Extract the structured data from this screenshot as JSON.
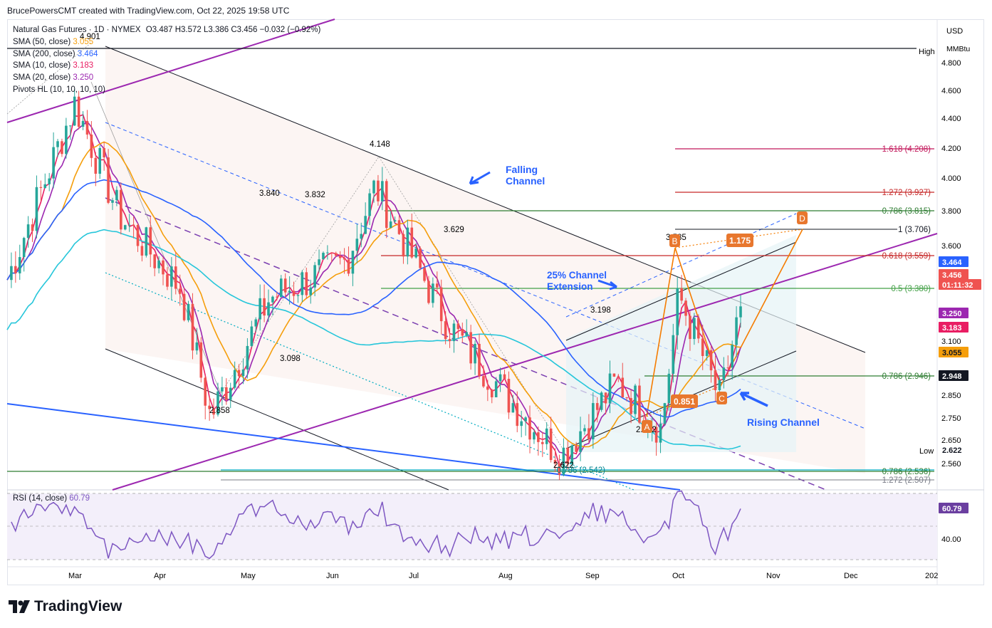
{
  "header": {
    "credit": "BrucePowersCMT created with TradingView.com, Oct 22, 2025 19:58 UTC"
  },
  "legend": {
    "title": "Natural Gas Futures · 1D · NYMEX",
    "ohlc": "O3.487  H3.572  L3.386  C3.456  −0.032 (−0.92%)",
    "studies": [
      {
        "label": "SMA (50, close)",
        "value": "3.055",
        "color": "#f59e0b"
      },
      {
        "label": "SMA (200, close)",
        "value": "3.464",
        "color": "#2962ff"
      },
      {
        "label": "SMA (10, close)",
        "value": "3.183",
        "color": "#e91e63"
      },
      {
        "label": "SMA (20, close)",
        "value": "3.250",
        "color": "#9c27b0"
      },
      {
        "label": "Pivots HL (10, 10, 10, 10)",
        "value": "",
        "color": "#131722"
      }
    ]
  },
  "axis": {
    "currency": "USD",
    "unit": "MMBtu",
    "high_tag": "High",
    "low_tag": "Low",
    "price_ticks": [
      "4.800",
      "4.600",
      "4.400",
      "4.200",
      "4.000",
      "3.800",
      "3.600",
      "3.100",
      "2.850",
      "2.750",
      "2.650",
      "2.560",
      "40.00"
    ],
    "price_badges": [
      {
        "text": "3.464",
        "bg": "#2962ff",
        "fg": "#ffffff"
      },
      {
        "text": "3.456",
        "bg": "#ef5350",
        "fg": "#ffffff"
      },
      {
        "text": "01:11:32",
        "bg": "#ef5350",
        "fg": "#ffffff"
      },
      {
        "text": "3.250",
        "bg": "#9c27b0",
        "fg": "#ffffff"
      },
      {
        "text": "3.183",
        "bg": "#e91e63",
        "fg": "#ffffff"
      },
      {
        "text": "3.055",
        "bg": "#f59e0b",
        "fg": "#131722"
      },
      {
        "text": "2.948",
        "bg": "#131722",
        "fg": "#ffffff"
      },
      {
        "text": "2.622",
        "bg": "#ffffff",
        "fg": "#131722"
      },
      {
        "text": "60.79",
        "bg": "#6b3fa0",
        "fg": "#ffffff"
      }
    ],
    "months": [
      "Mar",
      "Apr",
      "May",
      "Jun",
      "Jul",
      "Aug",
      "Sep",
      "Oct",
      "Nov",
      "Dec",
      "202"
    ]
  },
  "annotations": {
    "falling_channel": [
      "Falling",
      "Channel"
    ],
    "rising_channel": "Rising Channel",
    "extension": [
      "25% Channel",
      "Extension"
    ],
    "pivots": [
      "4.901",
      "4.148",
      "3.840",
      "3.832",
      "3.629",
      "3.098",
      "2.858",
      "3.198",
      "3.585",
      "2.622",
      "2.772"
    ],
    "fib_levels": [
      "1.618 (4.208)",
      "1.272 (3.927)",
      "0.786 (3.815)",
      "1 (3.706)",
      "0.618 (3.559)",
      "0.5 (3.380)",
      "0.786 (2.946)",
      "0.786 (2.536)",
      "1.272 (2.507)",
      "0.786 (2.542)"
    ],
    "abcd": [
      "A",
      "B",
      "C",
      "D"
    ],
    "ratios": [
      "1.175",
      "0.851"
    ]
  },
  "rsi": {
    "label": "RSI (14, close)",
    "value": "60.79"
  },
  "footer": {
    "brand": "TradingView"
  },
  "chart_data": {
    "type": "candlestick",
    "symbol": "Natural Gas Futures",
    "interval": "1D",
    "ylim": [
      2.5,
      4.95
    ],
    "x_range": [
      "Feb",
      "Dec"
    ],
    "close_path": [
      {
        "date": "2025-02-15",
        "close": 3.6
      },
      {
        "date": "2025-03-10",
        "close": 4.55
      },
      {
        "date": "2025-03-25",
        "close": 3.95
      },
      {
        "date": "2025-04-15",
        "close": 3.55
      },
      {
        "date": "2025-04-25",
        "close": 2.86
      },
      {
        "date": "2025-05-15",
        "close": 3.5
      },
      {
        "date": "2025-06-10",
        "close": 3.7
      },
      {
        "date": "2025-06-20",
        "close": 4.1
      },
      {
        "date": "2025-07-15",
        "close": 3.35
      },
      {
        "date": "2025-08-05",
        "close": 2.95
      },
      {
        "date": "2025-08-22",
        "close": 2.65
      },
      {
        "date": "2025-09-10",
        "close": 3.05
      },
      {
        "date": "2025-09-25",
        "close": 2.8
      },
      {
        "date": "2025-10-01",
        "close": 3.52
      },
      {
        "date": "2025-10-15",
        "close": 2.95
      },
      {
        "date": "2025-10-22",
        "close": 3.456
      }
    ],
    "series": [
      {
        "name": "SMA (50, close)",
        "last": 3.055
      },
      {
        "name": "SMA (200, close)",
        "last": 3.464
      },
      {
        "name": "SMA (10, close)",
        "last": 3.183
      },
      {
        "name": "SMA (20, close)",
        "last": 3.25
      },
      {
        "name": "RSI (14, close)",
        "last": 60.79
      }
    ]
  }
}
